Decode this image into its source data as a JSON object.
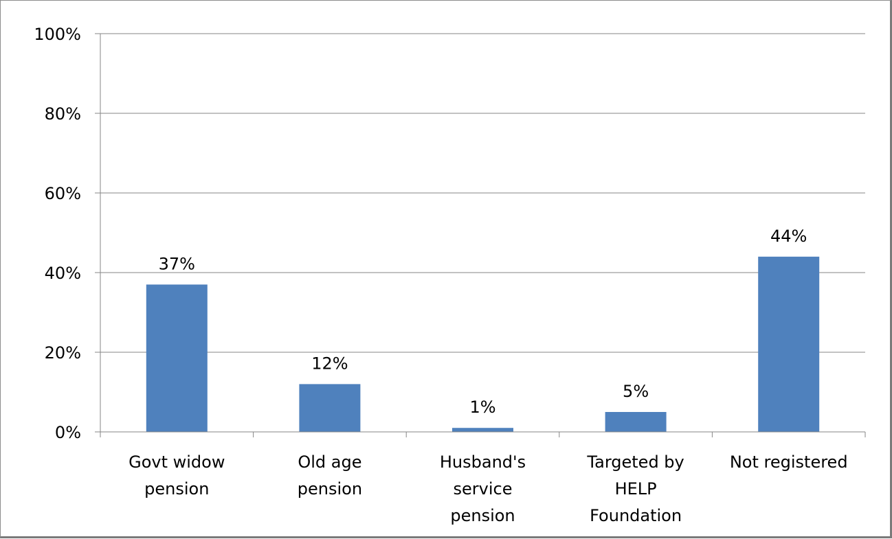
{
  "chart_data": {
    "type": "bar",
    "categories": [
      [
        "Govt widow",
        "pension"
      ],
      [
        "Old age",
        "pension"
      ],
      [
        "Husband's",
        "service",
        "pension"
      ],
      [
        "Targeted by",
        "HELP",
        "Foundation"
      ],
      [
        "Not registered"
      ]
    ],
    "values": [
      37,
      12,
      1,
      5,
      44
    ],
    "data_labels": [
      "37%",
      "12%",
      "1%",
      "5%",
      "44%"
    ],
    "y_ticks": [
      "0%",
      "20%",
      "40%",
      "60%",
      "80%",
      "100%"
    ],
    "ylim": [
      0,
      100
    ],
    "grid": true,
    "legend": "none",
    "title": "",
    "xlabel": "",
    "ylabel": "",
    "colors": {
      "bar": "#4f81bd",
      "grid": "#868686",
      "axis": "#868686"
    }
  }
}
